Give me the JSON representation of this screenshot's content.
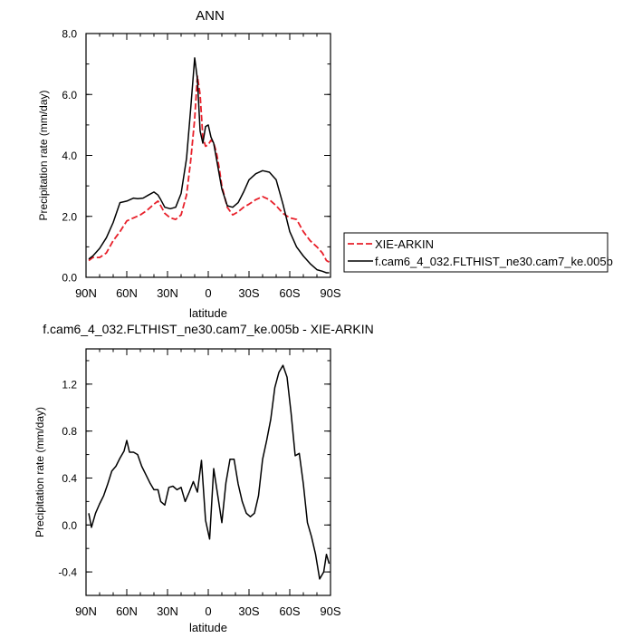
{
  "chart_data": [
    {
      "type": "line",
      "title": "ANN",
      "xlabel": "latitude",
      "ylabel": "Precipitation rate (mm/day)",
      "xlim": [
        -90,
        90
      ],
      "ylim": [
        0,
        8
      ],
      "xticks": [
        -90,
        -60,
        -30,
        0,
        30,
        60,
        90
      ],
      "xtick_labels": [
        "90N",
        "60N",
        "30N",
        "0",
        "30S",
        "60S",
        "90S"
      ],
      "yticks": [
        0,
        2,
        4,
        6,
        8
      ],
      "ytick_labels": [
        "0.0",
        "2.0",
        "4.0",
        "6.0",
        "8.0"
      ],
      "grid": false,
      "legend_position": "right, outside plot",
      "series": [
        {
          "name": "XIE-ARKIN",
          "color": "#e8202a",
          "dash": "dashed",
          "x": [
            -88,
            -85,
            -80,
            -75,
            -70,
            -65,
            -60,
            -55,
            -50,
            -45,
            -40,
            -37,
            -35,
            -32,
            -28,
            -24,
            -20,
            -16,
            -13,
            -10,
            -8,
            -6,
            -4,
            -2,
            0,
            2,
            4,
            6,
            8,
            10,
            14,
            18,
            22,
            26,
            30,
            35,
            40,
            45,
            50,
            55,
            60,
            65,
            70,
            75,
            80,
            84,
            87,
            89
          ],
          "y": [
            0.55,
            0.65,
            0.65,
            0.8,
            1.2,
            1.5,
            1.85,
            1.95,
            2.05,
            2.2,
            2.4,
            2.5,
            2.35,
            2.1,
            1.95,
            1.9,
            2.05,
            2.7,
            3.8,
            5.2,
            6.6,
            6.0,
            4.6,
            4.3,
            4.35,
            4.5,
            4.4,
            4.1,
            3.6,
            3.0,
            2.3,
            2.05,
            2.15,
            2.3,
            2.4,
            2.55,
            2.65,
            2.55,
            2.35,
            2.1,
            1.95,
            1.9,
            1.5,
            1.2,
            1.0,
            0.8,
            0.55,
            0.5
          ]
        },
        {
          "name": "f.cam6_4_032.FLTHIST_ne30.cam7_ke.005b",
          "color": "#000000",
          "dash": "solid",
          "x": [
            -88,
            -85,
            -80,
            -75,
            -70,
            -65,
            -60,
            -55,
            -52,
            -48,
            -44,
            -40,
            -37,
            -35,
            -32,
            -28,
            -24,
            -20,
            -16,
            -13,
            -10,
            -8,
            -6,
            -4,
            -2,
            0,
            2,
            4,
            6,
            8,
            10,
            14,
            18,
            22,
            26,
            30,
            35,
            40,
            45,
            50,
            55,
            60,
            65,
            70,
            75,
            80,
            84,
            87,
            89
          ],
          "y": [
            0.6,
            0.7,
            0.95,
            1.3,
            1.8,
            2.45,
            2.5,
            2.6,
            2.58,
            2.6,
            2.7,
            2.8,
            2.7,
            2.55,
            2.3,
            2.25,
            2.3,
            2.75,
            3.9,
            5.5,
            7.2,
            6.5,
            4.8,
            4.4,
            4.95,
            5.0,
            4.6,
            4.4,
            3.9,
            3.4,
            2.9,
            2.35,
            2.3,
            2.45,
            2.8,
            3.2,
            3.4,
            3.5,
            3.45,
            3.2,
            2.4,
            1.5,
            1.0,
            0.7,
            0.45,
            0.25,
            0.2,
            0.15,
            0.15
          ]
        }
      ]
    },
    {
      "type": "line",
      "title": "f.cam6_4_032.FLTHIST_ne30.cam7_ke.005b - XIE-ARKIN",
      "xlabel": "latitude",
      "ylabel": "Precipitation rate (mm/day)",
      "xlim": [
        -90,
        90
      ],
      "ylim": [
        -0.6,
        1.5
      ],
      "xticks": [
        -90,
        -60,
        -30,
        0,
        30,
        60,
        90
      ],
      "xtick_labels": [
        "90N",
        "60N",
        "30N",
        "0",
        "30S",
        "60S",
        "90S"
      ],
      "yticks": [
        -0.4,
        0,
        0.4,
        0.8,
        1.2
      ],
      "ytick_labels": [
        "-0.4",
        "0.0",
        "0.4",
        "0.8",
        "1.2"
      ],
      "grid": false,
      "series": [
        {
          "color": "#000000",
          "dash": "solid",
          "x": [
            -88,
            -86,
            -83,
            -80,
            -77,
            -74,
            -71,
            -68,
            -65,
            -62,
            -60,
            -58,
            -55,
            -52,
            -49,
            -46,
            -43,
            -40,
            -37,
            -35,
            -32,
            -29,
            -26,
            -23,
            -20,
            -17,
            -14,
            -11,
            -8,
            -5,
            -2,
            1,
            4,
            7,
            10,
            13,
            16,
            19,
            22,
            25,
            28,
            31,
            34,
            37,
            40,
            43,
            46,
            49,
            52,
            55,
            58,
            61,
            64,
            67,
            70,
            73,
            76,
            79,
            82,
            85,
            87,
            89
          ],
          "y": [
            0.1,
            -0.02,
            0.1,
            0.18,
            0.25,
            0.35,
            0.46,
            0.5,
            0.57,
            0.63,
            0.72,
            0.62,
            0.62,
            0.6,
            0.5,
            0.43,
            0.36,
            0.3,
            0.3,
            0.2,
            0.17,
            0.32,
            0.33,
            0.3,
            0.32,
            0.2,
            0.28,
            0.37,
            0.28,
            0.55,
            0.04,
            -0.12,
            0.48,
            0.25,
            0.02,
            0.36,
            0.56,
            0.56,
            0.35,
            0.2,
            0.1,
            0.07,
            0.1,
            0.25,
            0.56,
            0.72,
            0.9,
            1.17,
            1.3,
            1.36,
            1.26,
            0.95,
            0.59,
            0.61,
            0.35,
            0.02,
            -0.1,
            -0.25,
            -0.46,
            -0.4,
            -0.25,
            -0.33
          ]
        }
      ]
    }
  ]
}
